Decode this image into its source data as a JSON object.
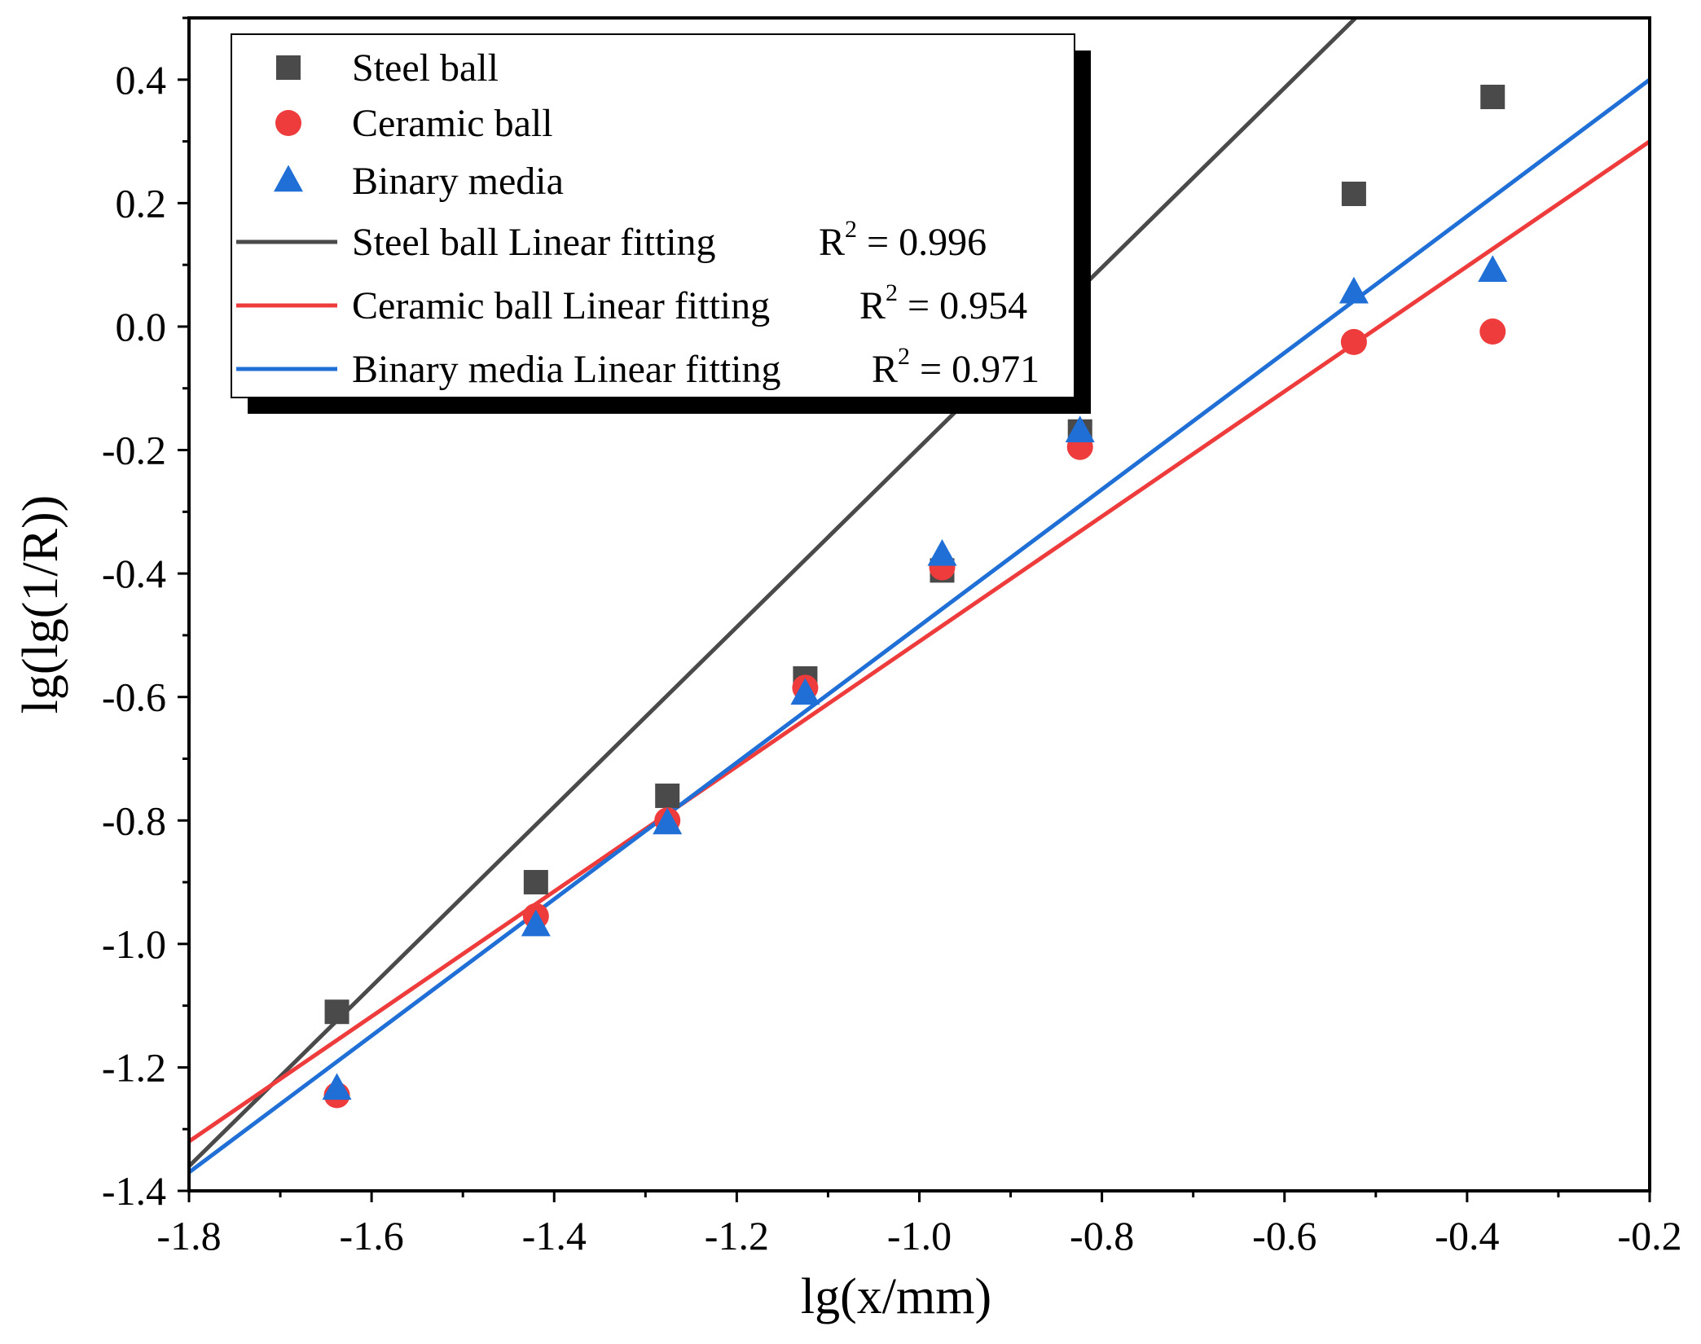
{
  "chart_data": {
    "type": "scatter",
    "title": "",
    "xlabel": "lg(x/mm)",
    "ylabel": "lg(lg(1/R))",
    "xlim": [
      -1.8,
      -0.2
    ],
    "ylim": [
      -1.4,
      0.5
    ],
    "xticks": [
      -1.8,
      -1.6,
      -1.4,
      -1.2,
      -1.0,
      -0.8,
      -0.6,
      -0.4,
      -0.2
    ],
    "xtick_labels": [
      "-1.8",
      "-1.6",
      "-1.4",
      "-1.2",
      "-1.0",
      "-0.8",
      "-0.6",
      "-0.4",
      "-0.2"
    ],
    "yticks": [
      -1.4,
      -1.2,
      -1.0,
      -0.8,
      -0.6,
      -0.4,
      -0.2,
      0.0,
      0.2,
      0.4
    ],
    "ytick_labels": [
      "-1.4",
      "-1.2",
      "-1.0",
      "-0.8",
      "-0.6",
      "-0.4",
      "-0.2",
      "0.0",
      "0.2",
      "0.4"
    ],
    "grid": false,
    "legend_position": "top-left",
    "x": [
      -1.638,
      -1.42,
      -1.276,
      -1.125,
      -0.975,
      -0.824,
      -0.524,
      -0.372
    ],
    "series": [
      {
        "name": "Steel ball",
        "marker": "square",
        "color": "#4a4a4a",
        "values": [
          -1.11,
          -0.9,
          -0.76,
          -0.57,
          -0.395,
          -0.17,
          0.215,
          0.372
        ]
      },
      {
        "name": "Ceramic ball",
        "marker": "circle",
        "color": "#ee3b3b",
        "values": [
          -1.245,
          -0.955,
          -0.8,
          -0.585,
          -0.39,
          -0.195,
          -0.025,
          -0.008
        ]
      },
      {
        "name": "Binary media",
        "marker": "triangle",
        "color": "#1f6fd6",
        "values": [
          -1.235,
          -0.97,
          -0.805,
          -0.595,
          -0.37,
          -0.17,
          0.055,
          0.09
        ]
      }
    ],
    "fits": [
      {
        "name": "Steel ball Linear fitting",
        "r2_label": "R",
        "r2_sup": "2",
        "r2_value": " = 0.996",
        "color": "#4a4a4a",
        "slope": 1.4556,
        "intercept": 1.26
      },
      {
        "name": "Ceramic ball Linear fitting",
        "r2_label": "R",
        "r2_sup": "2",
        "r2_value": " = 0.954",
        "color": "#ee3b3b",
        "slope": 1.0125,
        "intercept": 0.5025
      },
      {
        "name": "Binary media Linear fitting",
        "r2_label": "R",
        "r2_sup": "2",
        "r2_value": " = 0.971",
        "color": "#1f6fd6",
        "slope": 1.1063,
        "intercept": 0.6213
      }
    ]
  }
}
